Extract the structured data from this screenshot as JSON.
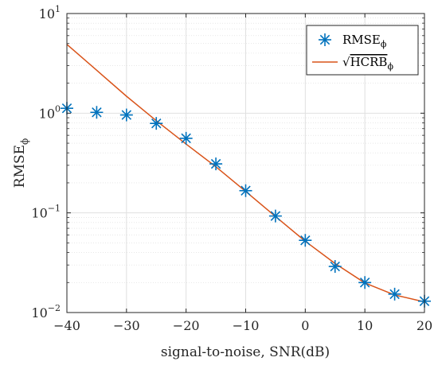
{
  "chart_data": {
    "type": "scatter",
    "title": "",
    "xlabel": "signal-to-noise, SNR(dB)",
    "ylabel": "RMSE",
    "ylabel_sub": "ϕ",
    "xlim": [
      -40,
      20
    ],
    "ylim": [
      0.01,
      10
    ],
    "yscale": "log",
    "grid": true,
    "minor_grid": true,
    "legend_position": "top-right",
    "x_ticks": [
      -40,
      -30,
      -20,
      -10,
      0,
      10,
      20
    ],
    "x_tick_labels": [
      "−40",
      "−30",
      "−20",
      "−10",
      "0",
      "10",
      "20"
    ],
    "y_ticks": [
      0.01,
      0.1,
      1,
      10
    ],
    "y_tick_labels": [
      {
        "base": "10",
        "exp": "−2"
      },
      {
        "base": "10",
        "exp": "−1"
      },
      {
        "base": "10",
        "exp": "0"
      },
      {
        "base": "10",
        "exp": "1"
      }
    ],
    "series": [
      {
        "name": "RMSE",
        "name_sub": "ϕ",
        "kind": "markers",
        "marker": "asterisk",
        "color": "#0072BD",
        "x": [
          -40,
          -35,
          -30,
          -25,
          -20,
          -15,
          -10,
          -5,
          0,
          5,
          10,
          15,
          20
        ],
        "y": [
          1.12,
          1.02,
          0.96,
          0.79,
          0.56,
          0.31,
          0.167,
          0.093,
          0.053,
          0.029,
          0.02,
          0.0153,
          0.013
        ]
      },
      {
        "name": "HCRB",
        "name_sub": "ϕ",
        "name_prefix": "√",
        "kind": "line",
        "color": "#D95319",
        "x": [
          -40,
          -35,
          -30,
          -25,
          -20,
          -15,
          -10,
          -5,
          0,
          5,
          10,
          15,
          20
        ],
        "y": [
          4.9,
          2.7,
          1.48,
          0.84,
          0.49,
          0.29,
          0.164,
          0.092,
          0.052,
          0.031,
          0.0198,
          0.015,
          0.0128
        ]
      }
    ]
  }
}
